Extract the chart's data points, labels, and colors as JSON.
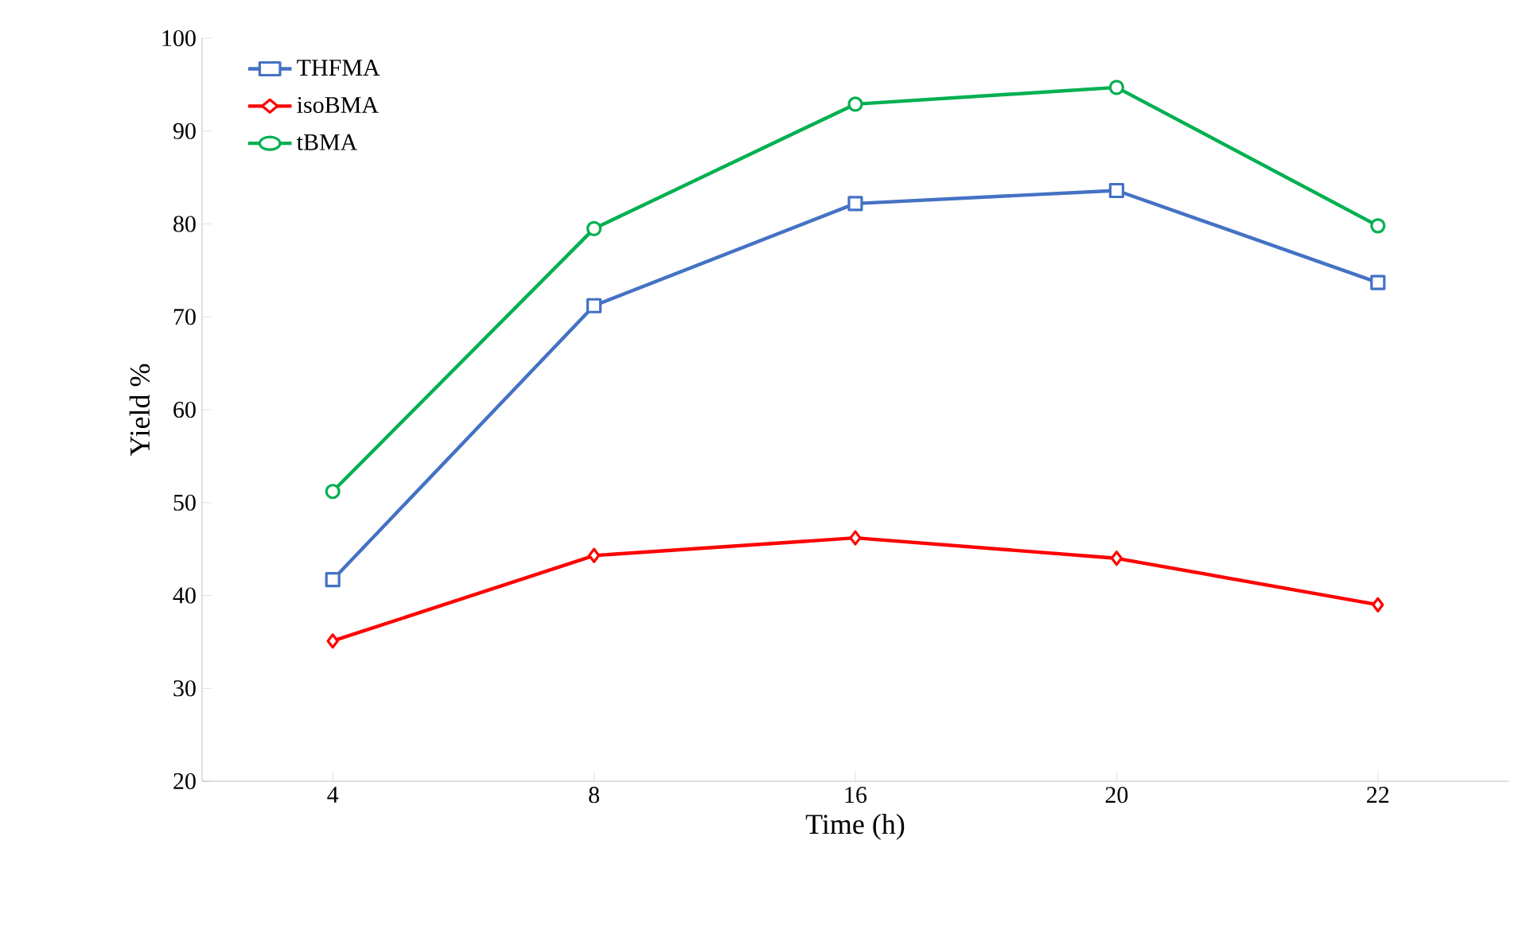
{
  "chart_data": {
    "type": "line",
    "xlabel": "Time (h)",
    "ylabel": "Yield %",
    "categories": [
      "4",
      "8",
      "16",
      "20",
      "22"
    ],
    "series": [
      {
        "name": "THFMA",
        "color": "#4472c4",
        "marker": "square",
        "values": [
          41.7,
          71.2,
          82.2,
          83.6,
          73.7
        ]
      },
      {
        "name": "isoBMA",
        "color": "#ff0000",
        "marker": "diamond",
        "values": [
          35.1,
          44.3,
          46.2,
          44.0,
          39.0
        ]
      },
      {
        "name": "tBMA",
        "color": "#00b050",
        "marker": "circle",
        "values": [
          51.2,
          79.5,
          92.9,
          94.7,
          79.8
        ]
      }
    ],
    "ylim": [
      20,
      100
    ],
    "yticks": [
      20,
      30,
      40,
      50,
      60,
      70,
      80,
      90,
      100
    ],
    "legend": "top left",
    "grid": false
  }
}
